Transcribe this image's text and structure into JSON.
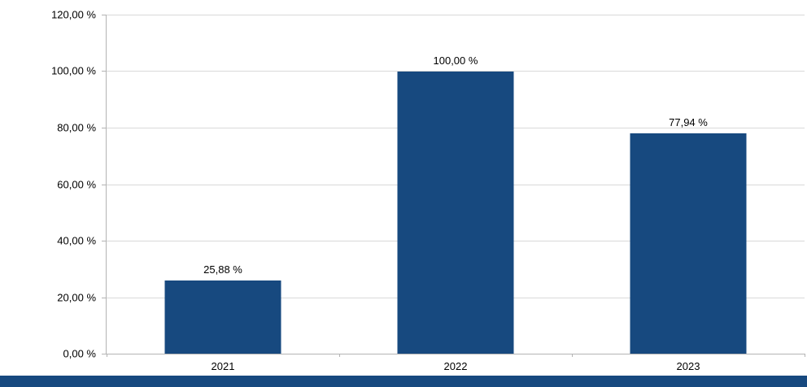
{
  "chart_data": {
    "type": "bar",
    "title": "",
    "categories": [
      "2021",
      "2022",
      "2023"
    ],
    "values": [
      25.88,
      100.0,
      77.94
    ],
    "data_labels": [
      "25,88 %",
      "100,00 %",
      "77,94 %"
    ],
    "y_ticks": [
      {
        "value": 120,
        "label": "120,00 %"
      },
      {
        "value": 100,
        "label": "100,00 %"
      },
      {
        "value": 80,
        "label": "80,00 %"
      },
      {
        "value": 60,
        "label": "60,00 %"
      },
      {
        "value": 40,
        "label": "40,00 %"
      },
      {
        "value": 20,
        "label": "20,00 %"
      },
      {
        "value": 0,
        "label": "0,00 %"
      }
    ],
    "ylim": [
      0,
      120
    ],
    "grid": true,
    "legend": "none",
    "bar_color": "#17497F",
    "gridline_color": "#d9d9d9",
    "axis_color": "#b3b3b3"
  },
  "footer_strip": {
    "color": "#17497F"
  }
}
